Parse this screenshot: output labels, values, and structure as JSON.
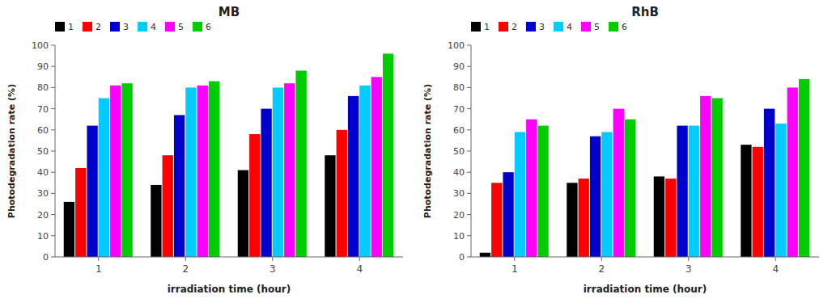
{
  "chart_data": [
    {
      "type": "bar",
      "title": "MB",
      "x_label": "irradiation time (hour)",
      "y_label": "Photodegradation rate (%)",
      "categories": [
        "1",
        "2",
        "3",
        "4"
      ],
      "series": [
        {
          "name": "1",
          "color": "#000000",
          "values": [
            26,
            34,
            41,
            48
          ]
        },
        {
          "name": "2",
          "color": "#ff0000",
          "values": [
            42,
            48,
            58,
            60
          ]
        },
        {
          "name": "3",
          "color": "#0000cc",
          "values": [
            62,
            67,
            70,
            76
          ]
        },
        {
          "name": "4",
          "color": "#00ccff",
          "values": [
            75,
            80,
            80,
            81
          ]
        },
        {
          "name": "5",
          "color": "#ff00ff",
          "values": [
            81,
            81,
            82,
            85
          ]
        },
        {
          "name": "6",
          "color": "#00cc00",
          "values": [
            82,
            83,
            88,
            96
          ]
        }
      ],
      "ylim": [
        0,
        100
      ],
      "yticks": [
        0,
        10,
        20,
        30,
        40,
        50,
        60,
        70,
        80,
        90,
        100
      ],
      "grid": false,
      "legend": "upper left"
    },
    {
      "type": "bar",
      "title": "RhB",
      "x_label": "irradiation time (hour)",
      "y_label": "Photodegradation rate (%)",
      "categories": [
        "1",
        "2",
        "3",
        "4"
      ],
      "series": [
        {
          "name": "1",
          "color": "#000000",
          "values": [
            2,
            35,
            38,
            53
          ]
        },
        {
          "name": "2",
          "color": "#ff0000",
          "values": [
            35,
            37,
            37,
            52
          ]
        },
        {
          "name": "3",
          "color": "#0000cc",
          "values": [
            40,
            57,
            62,
            70
          ]
        },
        {
          "name": "4",
          "color": "#00ccff",
          "values": [
            59,
            59,
            62,
            63
          ]
        },
        {
          "name": "5",
          "color": "#ff00ff",
          "values": [
            65,
            70,
            76,
            80
          ]
        },
        {
          "name": "6",
          "color": "#00cc00",
          "values": [
            62,
            65,
            75,
            84
          ]
        }
      ],
      "ylim": [
        0,
        100
      ],
      "yticks": [
        0,
        10,
        20,
        30,
        40,
        50,
        60,
        70,
        80,
        90,
        100
      ],
      "grid": false,
      "legend": "upper left"
    }
  ]
}
